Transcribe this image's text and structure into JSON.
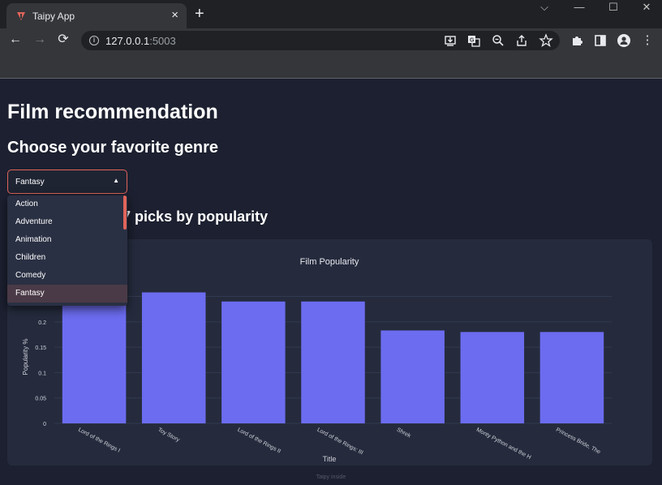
{
  "browser": {
    "tab_title": "Taipy App",
    "tab_close": "×",
    "new_tab": "+",
    "url_host": "127.0.0.1",
    "url_port": ":5003",
    "window_controls": [
      "⌵",
      "—",
      "☐",
      "✕"
    ]
  },
  "page": {
    "title": "Film recommendation",
    "subtitle": "Choose your favorite genre",
    "genre_select": "Fantasy",
    "picks_heading": "Here are the top 7 picks by popularity",
    "footer": "Taipy inside"
  },
  "dropdown": {
    "options": [
      "Action",
      "Adventure",
      "Animation",
      "Children",
      "Comedy",
      "Fantasy"
    ],
    "selected": "Fantasy"
  },
  "colors": {
    "bar": "#6c6cf0",
    "accent": "#e0645a"
  },
  "chart_data": {
    "type": "bar",
    "title": "Film Popularity",
    "xlabel": "Title",
    "ylabel": "Popularity %",
    "categories": [
      "Lord of the Rings I",
      "Toy Story",
      "Lord of the Rings II",
      "Lord of the Rings: III",
      "Shrek",
      "Monty Python and the H",
      "Princess Bride, The"
    ],
    "values": [
      0.254,
      0.258,
      0.24,
      0.24,
      0.183,
      0.18,
      0.18
    ],
    "ylim": [
      0,
      0.27
    ],
    "yticks": [
      0,
      0.05,
      0.1,
      0.15,
      0.2
    ],
    "ytick_labels": [
      "0",
      "0.05",
      "0.1",
      "0.15",
      "0.2"
    ]
  }
}
